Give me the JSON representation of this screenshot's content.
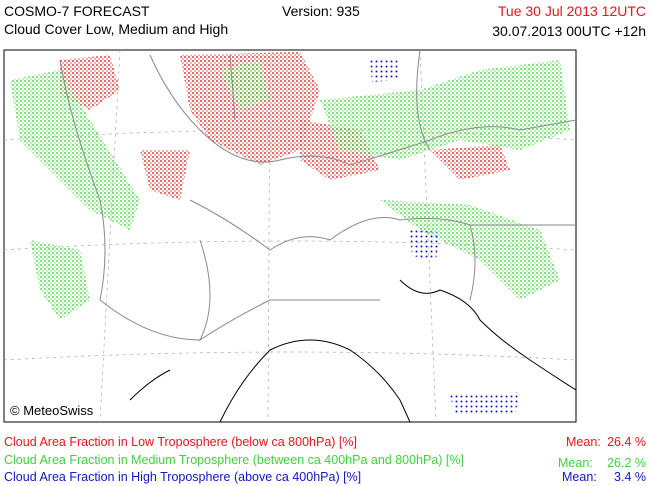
{
  "header": {
    "title": "COSMO-7 FORECAST",
    "subtitle": "Cloud Cover Low, Medium and High",
    "version": "Version: 935",
    "valid_time": "Tue 30 Jul 2013 12UTC",
    "run_time": "30.07.2013 00UTC +12h"
  },
  "map": {
    "credit": "© MeteoSwiss"
  },
  "legend": [
    {
      "label": "Cloud Area Fraction in Low Troposphere (below ca 800hPa) [%]",
      "mean_label": "Mean:",
      "mean": "26.4 %"
    },
    {
      "label": "Cloud Area Fraction in Medium Troposphere (between ca 400hPa and 800hPa) [%]",
      "mean_label": "Mean:",
      "mean": "26.2 %"
    },
    {
      "label": "Cloud Area Fraction in High Troposphere (above ca 400hPa) [%]",
      "mean_label": "Mean:",
      "mean": "3.4 %"
    }
  ]
}
